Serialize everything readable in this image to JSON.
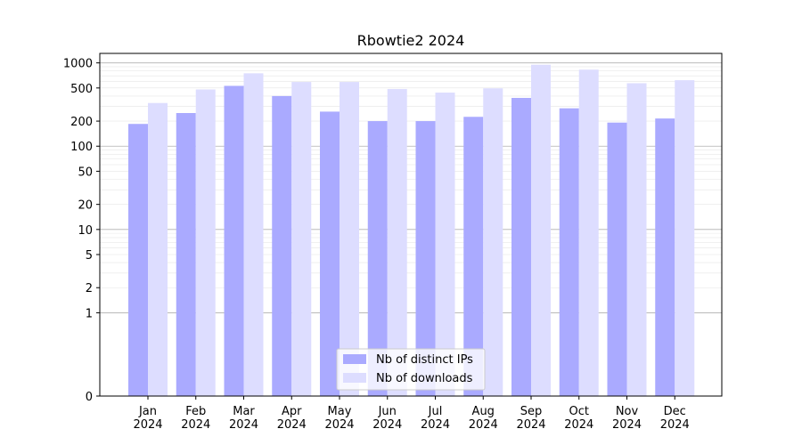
{
  "chart_data": {
    "type": "bar",
    "title": "Rbowtie2 2024",
    "xlabel": "",
    "ylabel": "",
    "yscale": "symlog",
    "ylim": [
      0,
      1300
    ],
    "grid": "horizontal",
    "legend_position": "lower-center",
    "categories": [
      "Jan\n2024",
      "Feb\n2024",
      "Mar\n2024",
      "Apr\n2024",
      "May\n2024",
      "Jun\n2024",
      "Jul\n2024",
      "Aug\n2024",
      "Sep\n2024",
      "Oct\n2024",
      "Nov\n2024",
      "Dec\n2024"
    ],
    "yticks": [
      0,
      1,
      2,
      5,
      10,
      20,
      50,
      100,
      200,
      500,
      1000
    ],
    "ytick_labels": [
      "0",
      "1",
      "2",
      "5",
      "10",
      "20",
      "50",
      "100",
      "200",
      "500",
      "1000"
    ],
    "series": [
      {
        "name": "Nb of distinct IPs",
        "color": "#aaaaff",
        "values": [
          185,
          250,
          530,
          400,
          260,
          200,
          200,
          225,
          380,
          285,
          192,
          215
        ]
      },
      {
        "name": "Nb of downloads",
        "color": "#ddddff",
        "values": [
          330,
          480,
          750,
          590,
          590,
          485,
          440,
          495,
          950,
          830,
          570,
          620
        ]
      }
    ]
  }
}
